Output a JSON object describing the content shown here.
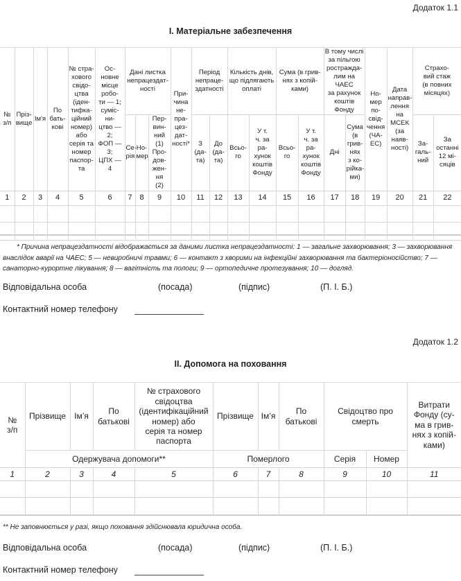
{
  "section1": {
    "annex": "Додаток 1.1",
    "title": "I. Матеріальне забезпечення",
    "headers": {
      "no": "№\nз/п",
      "surname": "Пріз-\nвище",
      "name": "Ім'я",
      "patronymic": "По\nбать-\nкові",
      "insurance": "№ стра-\nхового\nсвідо-\nцтва\n(іден-\nтифка-\nційний\nномер)\nабо\nсерія та\nномер\nпаспор-\nта",
      "workplace": "Ос-\nновне\nмісце\nробо-\nти — 1;\nсуміс-\nни-\nцтво —\n2;\nФОП —\n3;\nЦПХ —\n4",
      "sick_leave": "Дані листка\nнепрацездат-\nності",
      "series": "Се-\nрія",
      "number": "Но-\nмер",
      "primary": "Пер-\nвин-\nний\n(1)\nПро-\nдов-\nжен-\nня\n(2)",
      "reason": "При-\nчина\nне-\nпра-\nцез-\nдат-\nності*",
      "period": "Період\nнепраце-\nздатності",
      "from": "З\n(да-\nта)",
      "to": "До\n(да-\nта)",
      "days": "Кількість днів,\nщо підлягають\nоплаті",
      "days_total": "Всьо-\nго",
      "days_fund": "У т.\nч. за ра-\nхунок\nкоштів\nФонду",
      "sum": "Сума (в грив-\nнях з копій-\nками)",
      "sum_total": "Всьо-\nго",
      "sum_fund": "У т.\nч. за ра-\nхунок\nкоштів\nФонду",
      "chaes": "В тому числі\nза пільгою\npостраждa-\nлим на ЧАЕС\nза рахунок\nкоштів\nФонду",
      "chaes_days": "Дні",
      "chaes_sum": "Сума\n(в\nгрив-\nнях\nз ко-\npійка-\nми)",
      "cert_no": "Но-\nмер\nпо-\nсвід-\nчення\n(ЧА-\nЕС)",
      "msek": "Дата\nнаправ-\nлення\nна\nМСЕК\n(за\nнаяв-\nності)",
      "stazh": "Страхо-\nвий стаж\n(в повних\nмісяцях)",
      "stazh_total": "За-\nгаль-\nний",
      "stazh_12": "За\nостанні\n12 мі-\nсяців"
    },
    "numbers": [
      "1",
      "2",
      "3",
      "4",
      "5",
      "6",
      "7",
      "8",
      "9",
      "10",
      "11",
      "12",
      "13",
      "14",
      "15",
      "16",
      "17",
      "18",
      "19",
      "20",
      "21",
      "22"
    ],
    "footnote": "* Причина непрацездатності відображається за даними листка непрацездатності: 1 — загальне захворювання; 3 — захворювання внаслідок аварії на ЧАЕС; 5 — невиробничі травми; 6 — контакт з хворими на інфекційні захворювання та бактеріоносійство; 7 — санаторно-курортне лікування; 8 — вагітність та пологи; 9 — ортопедичне протезування; 10 — догляд.",
    "responsible": "Відповідальна особа",
    "position": "(посада)",
    "signature": "(підпис)",
    "pib": "(П. І. Б.)",
    "phone": "Контактний номер телефону"
  },
  "section2": {
    "annex": "Додаток 1.2",
    "title": "II. Допомога на поховання",
    "headers": {
      "no": "№\nз/п",
      "surname": "Прізвище",
      "name": "Ім’я",
      "patronymic": "По\nбатькові",
      "insurance": "№ страхового\nсвідоцтва\n(ідентифікаційний\nномер) або\nсерія та номер\nпаспорта",
      "d_surname": "Прізвище",
      "d_name": "Ім’я",
      "d_patronymic": "По\nбатькові",
      "death_cert": "Свідоцтво  про\nсмерть",
      "expenses": "Витрати\nФонду (су-\nма в грив-\nнях з копій-\nками)",
      "recipient": "Одержувача допомоги**",
      "deceased": "Померлого",
      "series": "Серія",
      "number": "Номер"
    },
    "numbers": [
      "1",
      "2",
      "3",
      "4",
      "5",
      "6",
      "7",
      "8",
      "9",
      "10",
      "11"
    ],
    "footnote": "** Не заповнюється у разі, якщо поховання здійснювала юридична особа.",
    "responsible": "Відповідальна особа",
    "position": "(посада)",
    "signature": "(підпис)",
    "pib": "(П. І. Б.)",
    "phone": "Контактний номер телефону"
  }
}
